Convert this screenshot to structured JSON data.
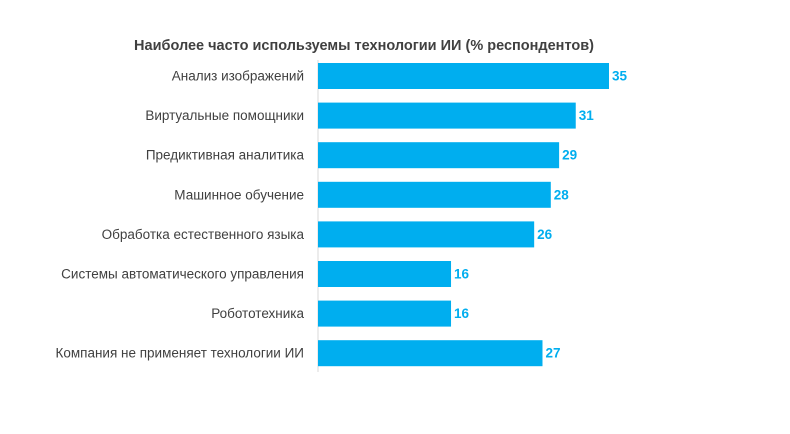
{
  "chart_data": {
    "type": "bar",
    "orientation": "horizontal",
    "title": "Наиболее часто используемы технологии ИИ (% респондентов)",
    "categories": [
      "Анализ изображений",
      "Виртуальные помощники",
      "Предиктивная аналитика",
      "Машинное обучение",
      "Обработка естественного языка",
      "Системы автоматического управления",
      "Робототехника",
      "Компания не применяет технологии ИИ"
    ],
    "values": [
      35,
      31,
      29,
      28,
      26,
      16,
      16,
      27
    ],
    "value_labels": [
      "35",
      "31",
      "29",
      "28",
      "26",
      "16",
      "16",
      "27"
    ],
    "xlim": [
      0,
      35
    ],
    "grid": false,
    "legend": "none",
    "bar_color": "#00AEEF",
    "label_color": "#00AEEF",
    "text_color": "#404040"
  }
}
